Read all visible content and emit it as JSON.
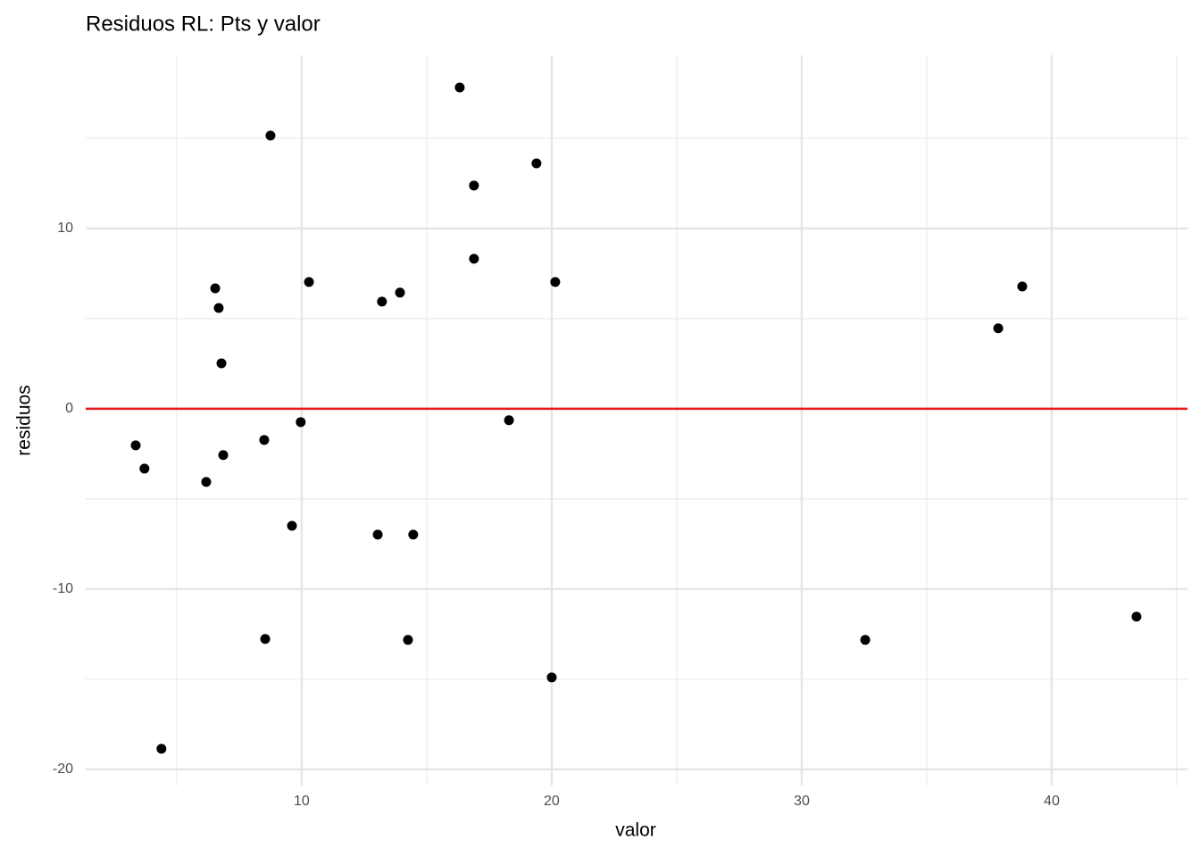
{
  "chart_data": {
    "type": "scatter",
    "title": "Residuos RL: Pts y valor",
    "x_label": "valor",
    "y_label": "residuos",
    "series": [
      {
        "color": "#000000",
        "x": [
          3.36,
          3.71,
          4.39,
          6.18,
          6.54,
          6.68,
          6.79,
          6.86,
          8.5,
          8.54,
          8.75,
          9.61,
          9.96,
          10.29,
          13.04,
          13.21,
          13.93,
          14.25,
          14.46,
          16.32,
          16.89,
          16.89,
          18.29,
          19.39,
          20.0,
          20.14,
          32.54,
          37.86,
          38.82,
          43.39
        ],
        "values": [
          -2.03,
          -3.32,
          -18.86,
          -4.06,
          6.68,
          5.59,
          2.52,
          -2.57,
          -1.73,
          -12.77,
          15.15,
          -6.49,
          -0.74,
          7.03,
          -6.98,
          5.94,
          6.44,
          -12.82,
          -6.98,
          17.82,
          12.38,
          8.32,
          -0.64,
          13.61,
          -14.9,
          7.03,
          -12.82,
          4.46,
          6.78,
          -11.53
        ]
      }
    ],
    "xlim": [
      1.36,
      45.43
    ],
    "ylim": [
      -20.9,
      19.6
    ],
    "xticks": [
      10,
      20,
      30,
      40
    ],
    "yticks": [
      -20,
      -10,
      0,
      10
    ],
    "grid": true,
    "minor_grid": true,
    "hline": 0,
    "hline_color": "#e41a1c"
  }
}
